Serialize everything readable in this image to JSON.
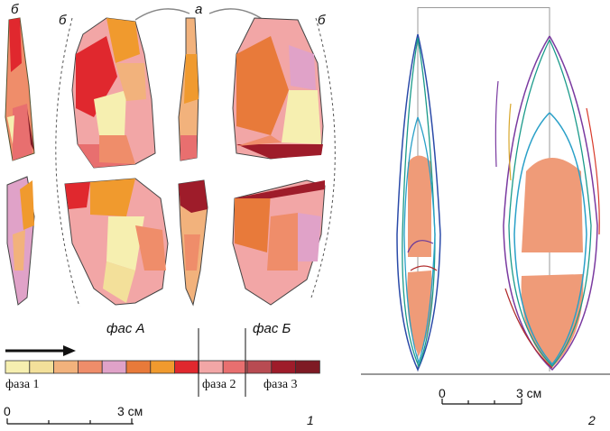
{
  "figure1": {
    "view_labels": {
      "b_left1": "б",
      "b_left2": "б",
      "a_top": "а",
      "b_right": "б"
    },
    "face_a": "фас А",
    "face_b": "фас Б",
    "phase_labels": [
      "фаза 1",
      "фаза 2",
      "фаза 3"
    ],
    "phase_colors": [
      "#f6efb0",
      "#f3e09a",
      "#f2b27c",
      "#ef8d6a",
      "#e0a2c8",
      "#e87a3a",
      "#f09a2e",
      "#e0282e",
      "#f2a6a6",
      "#e86f6f",
      "#b84b52",
      "#9e1c2a",
      "#7e1a24"
    ],
    "scale": {
      "zero": "0",
      "end": "3 см"
    },
    "panel_number": "1"
  },
  "figure2": {
    "scale": {
      "zero": "0",
      "end": "3 см"
    },
    "panel_number": "2"
  }
}
